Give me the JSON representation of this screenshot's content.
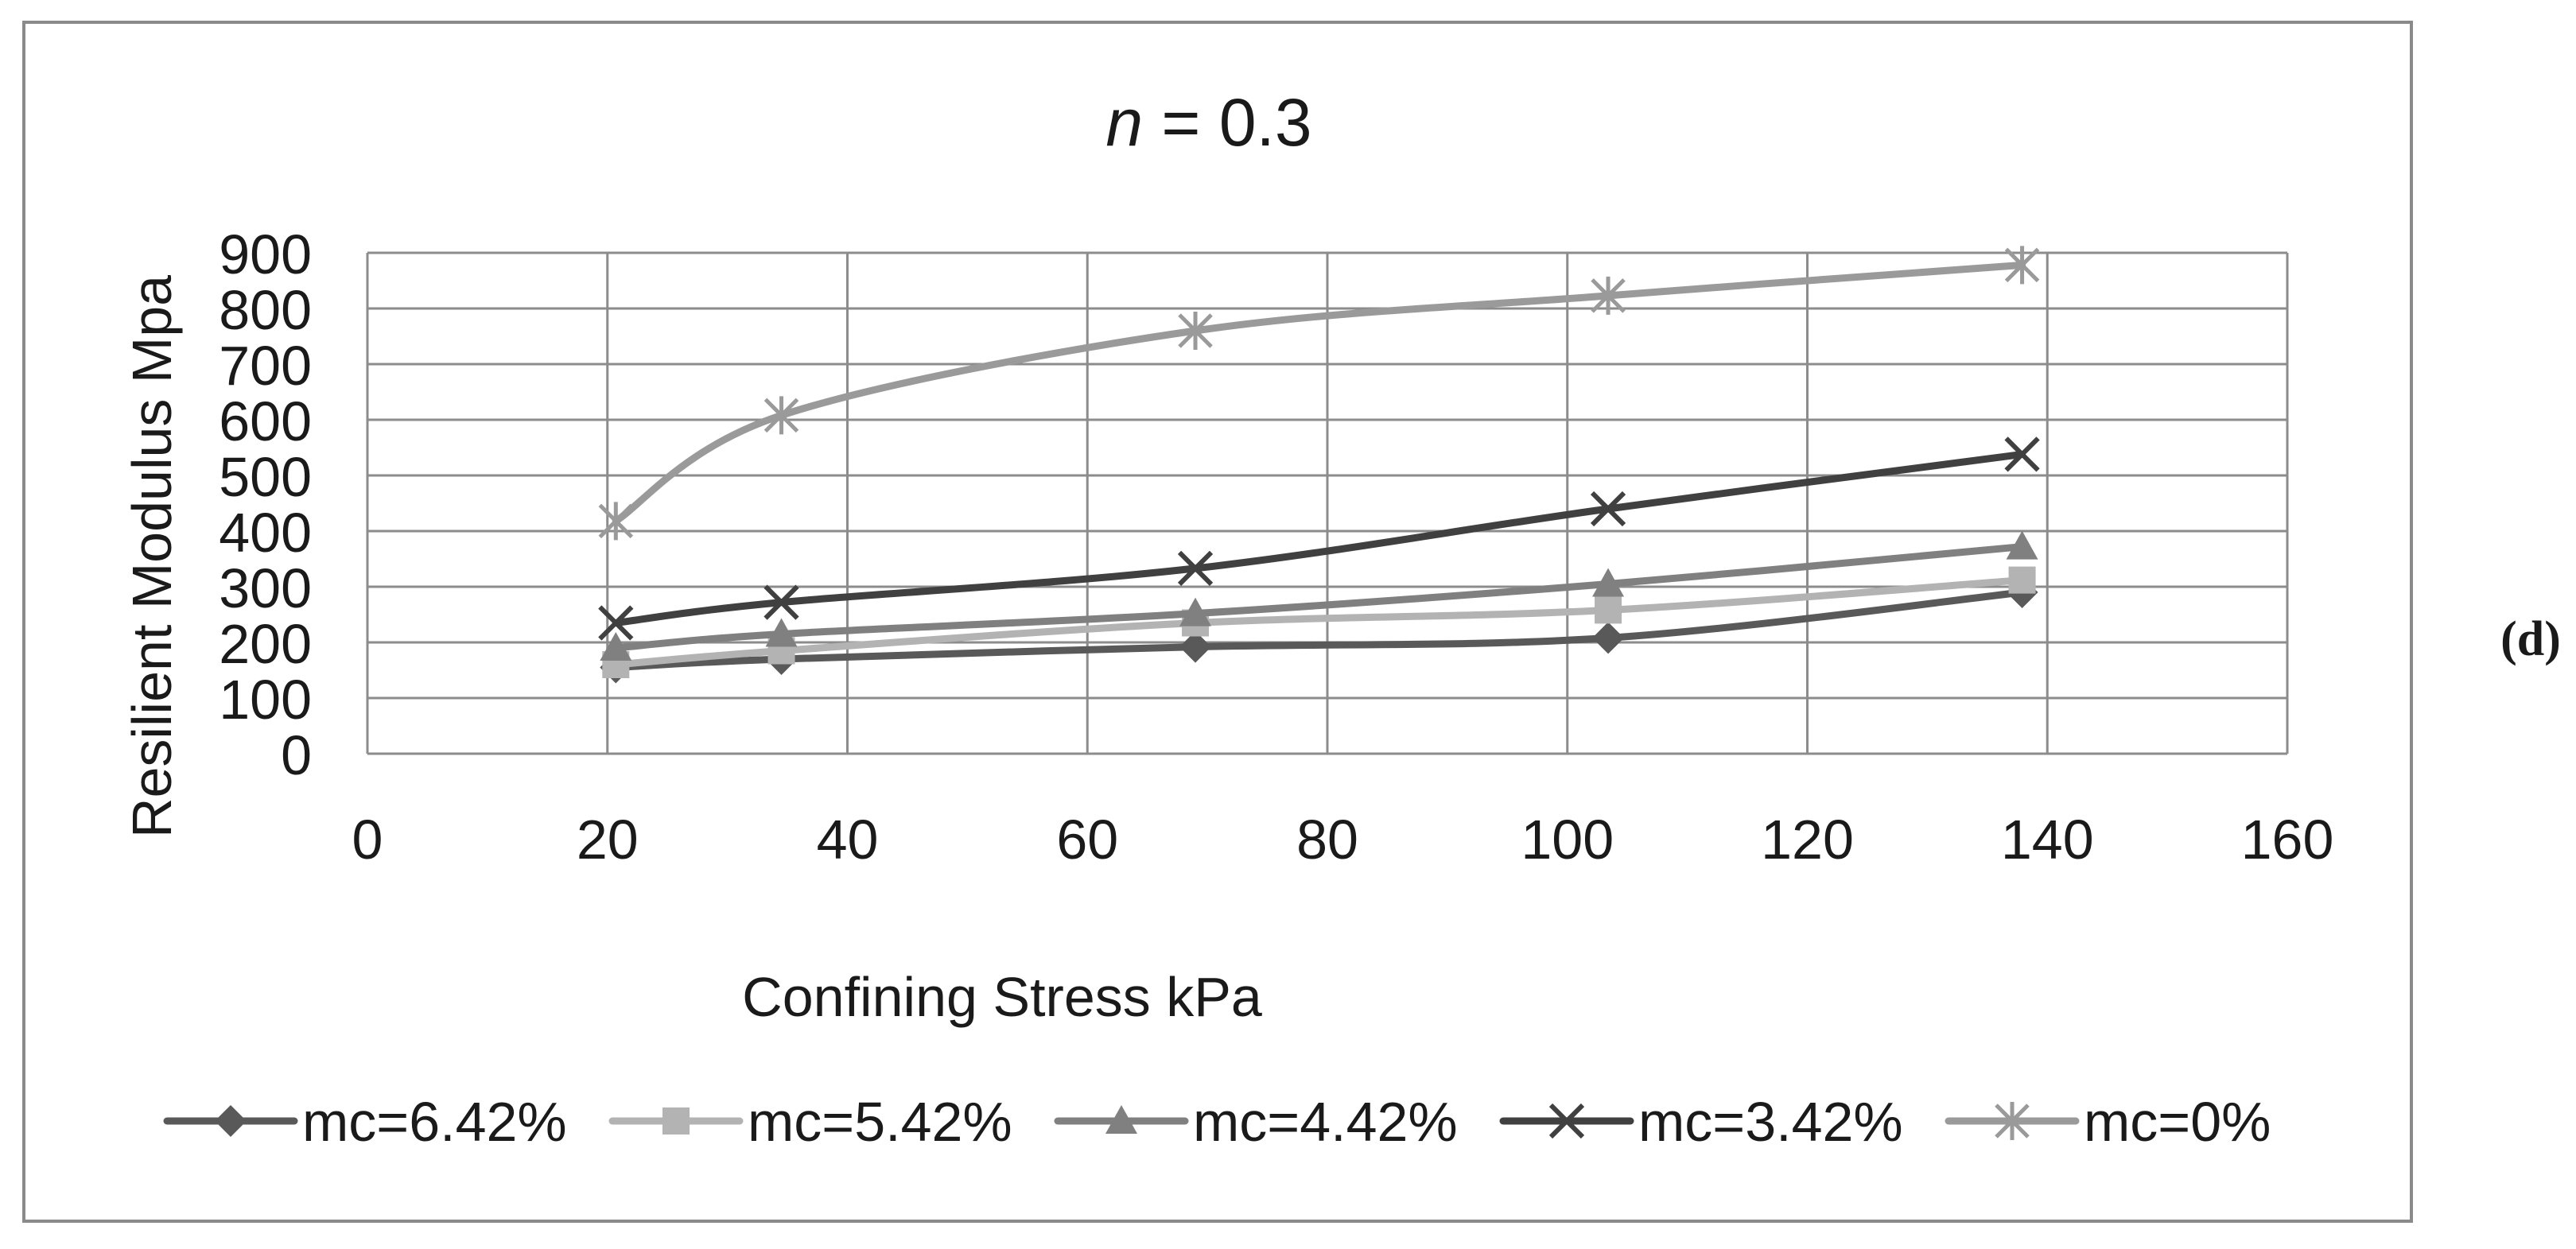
{
  "panel_label": "(d)",
  "chart_data": {
    "type": "line",
    "title_var": "n",
    "title_rest": " = 0.3",
    "xlabel": "Confining Stress kPa",
    "ylabel": "Resilient Modulus Mpa",
    "xlim": [
      0,
      160
    ],
    "ylim": [
      0,
      900
    ],
    "xticks": [
      0,
      20,
      40,
      60,
      80,
      100,
      120,
      140,
      160
    ],
    "yticks": [
      0,
      100,
      200,
      300,
      400,
      500,
      600,
      700,
      800,
      900
    ],
    "grid": true,
    "legend_position": "bottom",
    "x": [
      20.7,
      34.5,
      69,
      103.4,
      137.9
    ],
    "series": [
      {
        "name": "mc=6.42%",
        "marker": "diamond",
        "color": "#595959",
        "values": [
          155,
          170,
          192,
          208,
          290
        ]
      },
      {
        "name": "mc=5.42%",
        "marker": "square",
        "color": "#b3b3b3",
        "values": [
          160,
          185,
          235,
          258,
          312
        ]
      },
      {
        "name": "mc=4.42%",
        "marker": "triangle",
        "color": "#808080",
        "values": [
          190,
          215,
          252,
          305,
          372
        ]
      },
      {
        "name": "mc=3.42%",
        "marker": "x",
        "color": "#404040",
        "values": [
          235,
          272,
          333,
          440,
          538
        ]
      },
      {
        "name": "mc=0%",
        "marker": "star",
        "color": "#9a9a9a",
        "values": [
          418,
          608,
          760,
          823,
          878
        ]
      }
    ]
  }
}
